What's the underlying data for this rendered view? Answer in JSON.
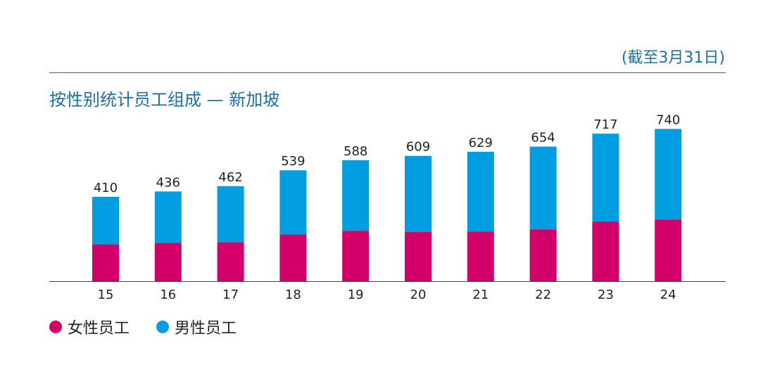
{
  "header": {
    "note": "(截至3月31日)",
    "title": "按性别统计员工组成 — 新加坡"
  },
  "colors": {
    "accent": "#1f6fa3",
    "female": "#d4006a",
    "male": "#009de0",
    "axis": "#444444"
  },
  "legend": {
    "female_label": "女性员工",
    "male_label": "男性员工"
  },
  "chart_data": {
    "type": "bar",
    "stacked": true,
    "categories": [
      "15",
      "16",
      "17",
      "18",
      "19",
      "20",
      "21",
      "22",
      "23",
      "24"
    ],
    "series": [
      {
        "name": "女性员工",
        "values": [
          180,
          186,
          190,
          227,
          245,
          239,
          242,
          252,
          290,
          300
        ]
      },
      {
        "name": "男性员工",
        "values": [
          230,
          250,
          272,
          312,
          343,
          370,
          387,
          402,
          427,
          440
        ]
      }
    ],
    "totals": [
      410,
      436,
      462,
      539,
      588,
      609,
      629,
      654,
      717,
      740
    ],
    "ylim": [
      0,
      800
    ],
    "grid": false,
    "legend_position": "bottom-left"
  }
}
